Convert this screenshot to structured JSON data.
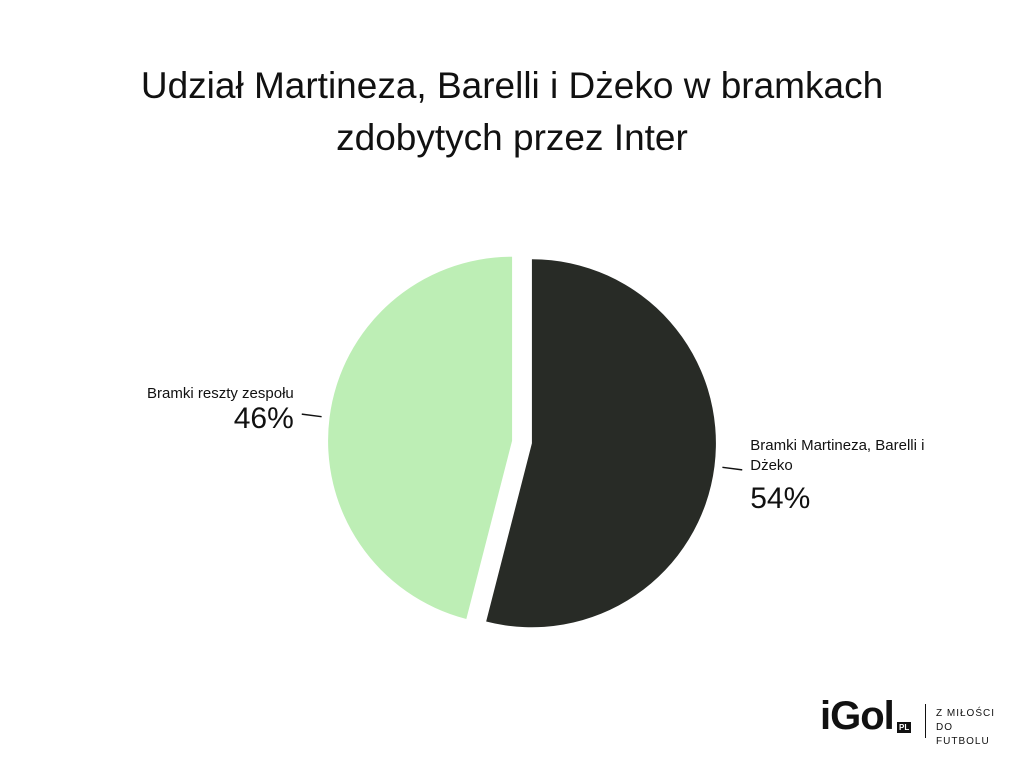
{
  "chart_data": {
    "type": "pie",
    "title": "Udział Martineza, Barelli i Dżeko w bramkach zdobytych przez Inter",
    "categories": [
      "Bramki Martineza, Barelli i Dżeko",
      "Bramki reszty zespołu"
    ],
    "values": [
      54,
      46
    ],
    "value_labels": [
      "54%",
      "46%"
    ],
    "colors": [
      "#282b26",
      "#bdeeb5"
    ]
  },
  "branding": {
    "brand": "iGol",
    "suffix": "PL",
    "tagline": "Z MIŁOŚCI DO FUTBOLU"
  }
}
